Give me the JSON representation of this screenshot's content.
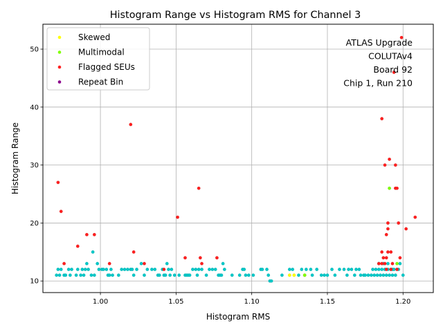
{
  "chart_data": {
    "type": "scatter",
    "title": "Histogram Range vs Histogram RMS for Channel 3",
    "xlabel": "Histogram RMS",
    "ylabel": "Histogram Range",
    "xlim": [
      0.962,
      1.22
    ],
    "ylim": [
      8.0,
      54.3
    ],
    "xticks": [
      1.0,
      1.05,
      1.1,
      1.15,
      1.2
    ],
    "xtick_labels": [
      "1.00",
      "1.05",
      "1.10",
      "1.15",
      "1.20"
    ],
    "yticks": [
      10,
      20,
      30,
      40,
      50
    ],
    "ytick_labels": [
      "10",
      "20",
      "30",
      "40",
      "50"
    ],
    "grid": true,
    "legend_position": "top-left",
    "annotation": [
      "ATLAS Upgrade",
      "COLUTAv4",
      "Board 92",
      "Chip 1, Run 210"
    ],
    "series": [
      {
        "color": "#00c8c8",
        "points": [
          [
            0.971,
            11
          ],
          [
            0.972,
            12
          ],
          [
            0.973,
            11
          ],
          [
            0.974,
            12
          ],
          [
            0.976,
            11
          ],
          [
            0.977,
            11
          ],
          [
            0.979,
            12
          ],
          [
            0.98,
            11
          ],
          [
            0.981,
            12
          ],
          [
            0.984,
            11
          ],
          [
            0.985,
            12
          ],
          [
            0.987,
            11
          ],
          [
            0.988,
            12
          ],
          [
            0.989,
            11
          ],
          [
            0.99,
            12
          ],
          [
            0.991,
            13
          ],
          [
            0.992,
            12
          ],
          [
            0.994,
            11
          ],
          [
            0.995,
            15
          ],
          [
            0.996,
            11
          ],
          [
            0.998,
            13
          ],
          [
            0.999,
            12
          ],
          [
            1.001,
            12
          ],
          [
            1.002,
            12
          ],
          [
            1.004,
            12
          ],
          [
            1.005,
            11
          ],
          [
            1.006,
            11
          ],
          [
            1.007,
            12
          ],
          [
            1.008,
            11
          ],
          [
            1.012,
            11
          ],
          [
            1.014,
            12
          ],
          [
            1.016,
            12
          ],
          [
            1.018,
            12
          ],
          [
            1.02,
            12
          ],
          [
            1.021,
            12
          ],
          [
            1.022,
            11
          ],
          [
            1.024,
            12
          ],
          [
            1.027,
            13
          ],
          [
            1.029,
            11
          ],
          [
            1.031,
            12
          ],
          [
            1.034,
            12
          ],
          [
            1.036,
            12
          ],
          [
            1.038,
            11
          ],
          [
            1.039,
            11
          ],
          [
            1.041,
            12
          ],
          [
            1.042,
            11
          ],
          [
            1.043,
            11
          ],
          [
            1.044,
            13
          ],
          [
            1.045,
            12
          ],
          [
            1.046,
            11
          ],
          [
            1.047,
            12
          ],
          [
            1.049,
            11
          ],
          [
            1.052,
            11
          ],
          [
            1.056,
            11
          ],
          [
            1.057,
            11
          ],
          [
            1.058,
            11
          ],
          [
            1.059,
            11
          ],
          [
            1.061,
            12
          ],
          [
            1.063,
            12
          ],
          [
            1.064,
            11
          ],
          [
            1.065,
            12
          ],
          [
            1.067,
            12
          ],
          [
            1.07,
            11
          ],
          [
            1.072,
            12
          ],
          [
            1.074,
            12
          ],
          [
            1.076,
            12
          ],
          [
            1.078,
            11
          ],
          [
            1.079,
            11
          ],
          [
            1.08,
            11
          ],
          [
            1.081,
            13
          ],
          [
            1.082,
            12
          ],
          [
            1.087,
            11
          ],
          [
            1.092,
            11
          ],
          [
            1.094,
            12
          ],
          [
            1.095,
            12
          ],
          [
            1.096,
            11
          ],
          [
            1.098,
            11
          ],
          [
            1.101,
            11
          ],
          [
            1.106,
            12
          ],
          [
            1.107,
            12
          ],
          [
            1.11,
            12
          ],
          [
            1.111,
            11
          ],
          [
            1.112,
            10
          ],
          [
            1.113,
            10
          ],
          [
            1.12,
            11
          ],
          [
            1.125,
            12
          ],
          [
            1.127,
            12
          ],
          [
            1.131,
            11
          ],
          [
            1.133,
            12
          ],
          [
            1.136,
            12
          ],
          [
            1.139,
            12
          ],
          [
            1.14,
            11
          ],
          [
            1.143,
            12
          ],
          [
            1.146,
            11
          ],
          [
            1.148,
            11
          ],
          [
            1.15,
            11
          ],
          [
            1.153,
            12
          ],
          [
            1.155,
            11
          ],
          [
            1.158,
            12
          ],
          [
            1.161,
            12
          ],
          [
            1.163,
            11
          ],
          [
            1.164,
            12
          ],
          [
            1.166,
            12
          ],
          [
            1.168,
            11
          ],
          [
            1.169,
            12
          ],
          [
            1.171,
            12
          ],
          [
            1.172,
            11
          ],
          [
            1.174,
            11
          ],
          [
            1.175,
            11
          ],
          [
            1.177,
            11
          ],
          [
            1.179,
            11
          ],
          [
            1.18,
            12
          ],
          [
            1.181,
            11
          ],
          [
            1.182,
            12
          ],
          [
            1.183,
            11
          ],
          [
            1.184,
            12
          ],
          [
            1.185,
            11
          ],
          [
            1.186,
            12
          ],
          [
            1.187,
            11
          ],
          [
            1.188,
            12
          ],
          [
            1.189,
            11
          ],
          [
            1.19,
            12
          ],
          [
            1.191,
            11
          ],
          [
            1.192,
            12
          ],
          [
            1.193,
            11
          ],
          [
            1.194,
            12
          ],
          [
            1.195,
            11
          ],
          [
            1.196,
            12
          ],
          [
            1.197,
            12
          ],
          [
            1.198,
            13
          ],
          [
            1.2,
            11
          ],
          [
            1.184,
            13
          ],
          [
            1.187,
            13
          ],
          [
            1.19,
            13
          ],
          [
            1.193,
            12
          ]
        ]
      },
      {
        "name": "Skewed",
        "color": "#ffff00",
        "points": [
          [
            1.125,
            11
          ],
          [
            1.128,
            11
          ],
          [
            1.135,
            11
          ]
        ]
      },
      {
        "name": "Multimodal",
        "color": "#80ff00",
        "points": [
          [
            1.191,
            26
          ],
          [
            1.196,
            13
          ],
          [
            1.135,
            11
          ]
        ]
      },
      {
        "name": "Flagged SEUs",
        "color": "#ff2020",
        "points": [
          [
            0.972,
            27
          ],
          [
            0.974,
            22
          ],
          [
            0.976,
            13
          ],
          [
            0.985,
            16
          ],
          [
            0.991,
            18
          ],
          [
            0.996,
            18
          ],
          [
            1.006,
            13
          ],
          [
            1.02,
            37
          ],
          [
            1.022,
            15
          ],
          [
            1.029,
            13
          ],
          [
            1.042,
            12
          ],
          [
            1.051,
            21
          ],
          [
            1.056,
            14
          ],
          [
            1.065,
            26
          ],
          [
            1.066,
            14
          ],
          [
            1.067,
            13
          ],
          [
            1.077,
            14
          ],
          [
            1.184,
            13
          ],
          [
            1.186,
            15
          ],
          [
            1.186,
            38
          ],
          [
            1.187,
            14
          ],
          [
            1.188,
            30
          ],
          [
            1.189,
            14
          ],
          [
            1.189,
            18
          ],
          [
            1.19,
            20
          ],
          [
            1.19,
            19
          ],
          [
            1.19,
            15
          ],
          [
            1.191,
            31
          ],
          [
            1.192,
            15
          ],
          [
            1.193,
            13
          ],
          [
            1.194,
            46
          ],
          [
            1.195,
            30
          ],
          [
            1.195,
            26
          ],
          [
            1.196,
            26
          ],
          [
            1.197,
            20
          ],
          [
            1.198,
            14
          ],
          [
            1.199,
            52
          ],
          [
            1.202,
            19
          ],
          [
            1.208,
            21
          ],
          [
            1.188,
            13
          ],
          [
            1.186,
            13
          ],
          [
            1.192,
            12
          ],
          [
            1.196,
            12
          ],
          [
            1.189,
            12
          ]
        ]
      },
      {
        "name": "Repeat Bin",
        "color": "#8b008b",
        "points": []
      }
    ]
  }
}
